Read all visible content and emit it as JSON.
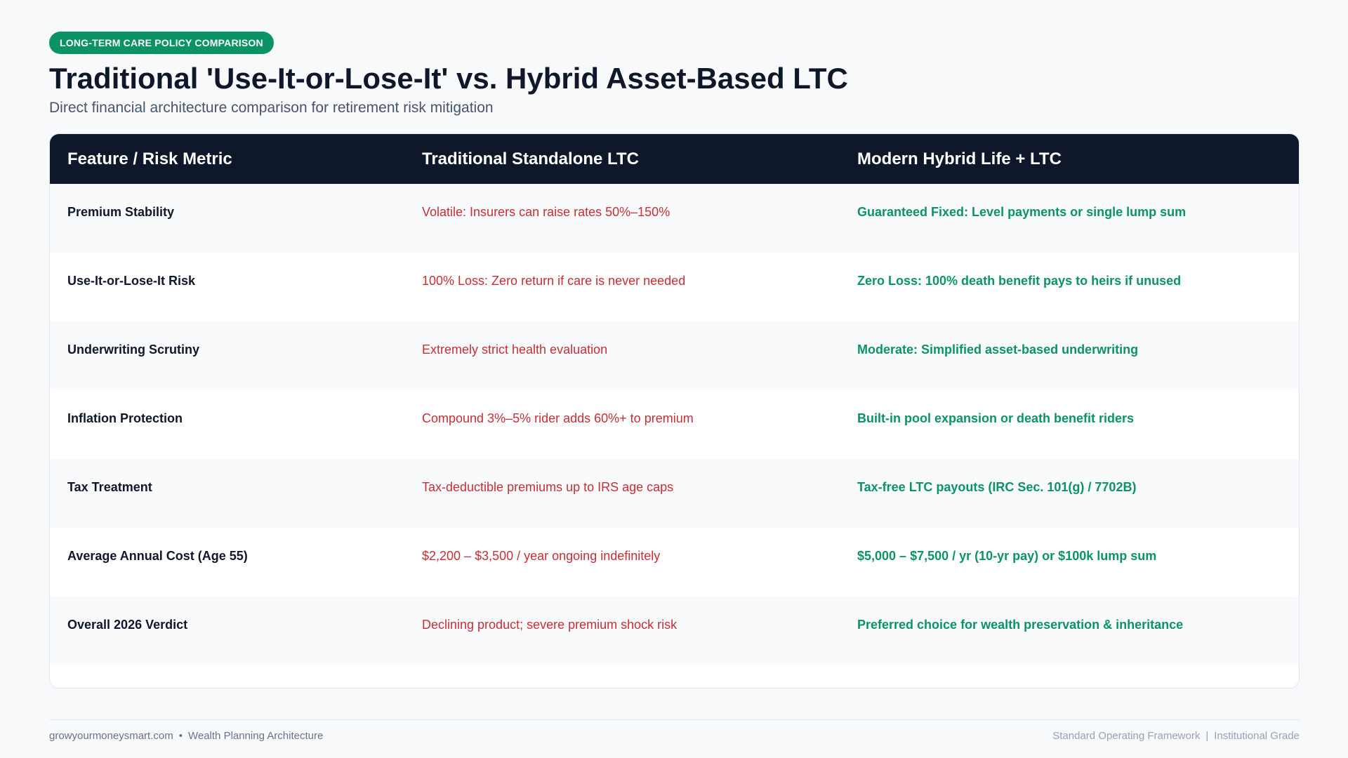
{
  "badge": "LONG-TERM CARE POLICY COMPARISON",
  "title": "Traditional 'Use-It-or-Lose-It' vs. Hybrid Asset-Based LTC",
  "subtitle": "Direct financial architecture comparison for retirement risk mitigation",
  "table": {
    "headers": [
      "Feature / Risk Metric",
      "Traditional Standalone LTC",
      "Modern Hybrid Life + LTC"
    ],
    "rows": [
      {
        "feature": "Premium Stability",
        "traditional": "Volatile: Insurers can raise rates 50%–150%",
        "hybrid": "Guaranteed Fixed: Level payments or single lump sum"
      },
      {
        "feature": "Use-It-or-Lose-It Risk",
        "traditional": "100% Loss: Zero return if care is never needed",
        "hybrid": "Zero Loss: 100% death benefit pays to heirs if unused"
      },
      {
        "feature": "Underwriting Scrutiny",
        "traditional": "Extremely strict health evaluation",
        "hybrid": "Moderate: Simplified asset-based underwriting"
      },
      {
        "feature": "Inflation Protection",
        "traditional": "Compound 3%–5% rider adds 60%+ to premium",
        "hybrid": "Built-in pool expansion or death benefit riders"
      },
      {
        "feature": "Tax Treatment",
        "traditional": "Tax-deductible premiums up to IRS age caps",
        "hybrid": "Tax-free LTC payouts (IRC Sec. 101(g) / 7702B)"
      },
      {
        "feature": "Average Annual Cost (Age 55)",
        "traditional": "$2,200 – $3,500 / year ongoing indefinitely",
        "hybrid": "$5,000 – $7,500 / yr (10-yr pay) or $100k lump sum"
      },
      {
        "feature": "Overall 2026 Verdict",
        "traditional": "Declining product; severe premium shock risk",
        "hybrid": "Preferred choice for wealth preservation & inheritance"
      }
    ]
  },
  "footer": {
    "site": "growyourmoneysmart.com",
    "bullet": "•",
    "section": "Wealth Planning Architecture",
    "right_a": "Standard Operating Framework",
    "divider": "|",
    "right_b": "Institutional Grade"
  },
  "colors": {
    "accent_green": "#0b9366",
    "negative_red": "#c62f36",
    "header_dark": "#0f172a"
  }
}
